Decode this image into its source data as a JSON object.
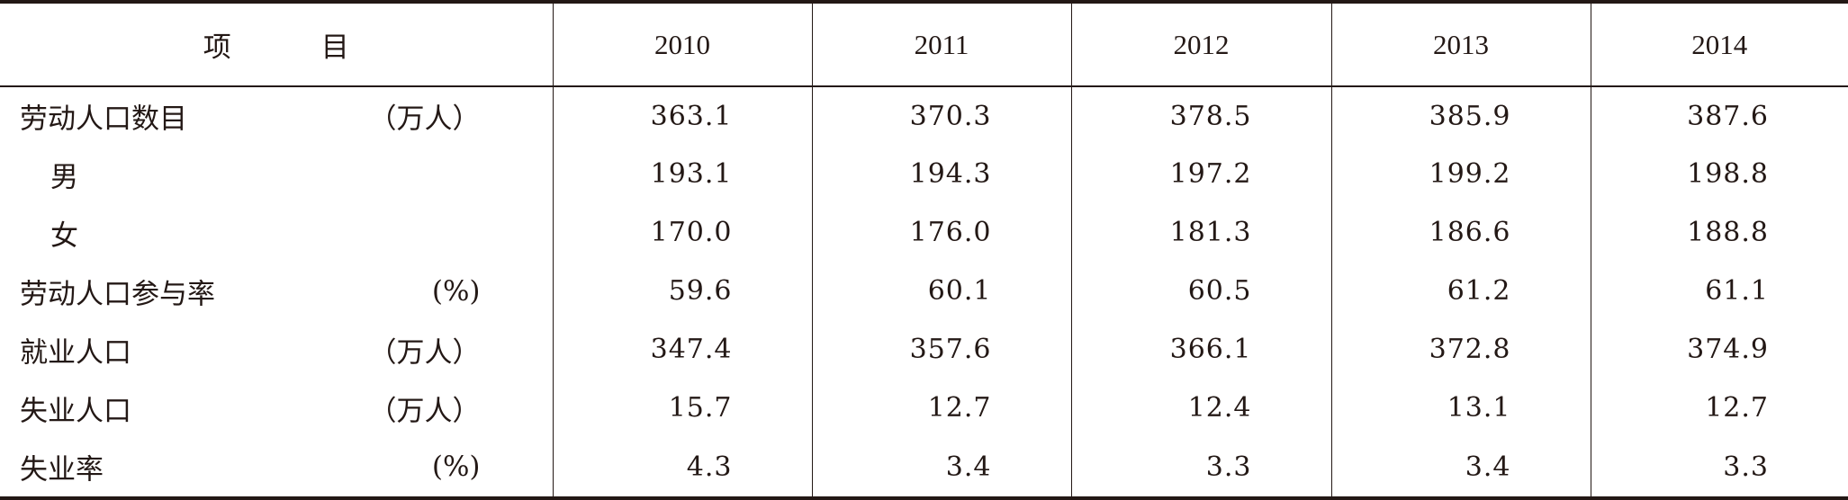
{
  "table": {
    "header": {
      "item_a": "项",
      "item_b": "目",
      "years": [
        "2010",
        "2011",
        "2012",
        "2013",
        "2014"
      ]
    },
    "rows": [
      {
        "label": "劳动人口数目",
        "unit": "（万人）",
        "indent": false,
        "values": [
          "363.1",
          "370.3",
          "378.5",
          "385.9",
          "387.6"
        ]
      },
      {
        "label": "男",
        "unit": "",
        "indent": true,
        "values": [
          "193.1",
          "194.3",
          "197.2",
          "199.2",
          "198.8"
        ]
      },
      {
        "label": "女",
        "unit": "",
        "indent": true,
        "values": [
          "170.0",
          "176.0",
          "181.3",
          "186.6",
          "188.8"
        ]
      },
      {
        "label": "劳动人口参与率",
        "unit": "(%)",
        "indent": false,
        "values": [
          "59.6",
          "60.1",
          "60.5",
          "61.2",
          "61.1"
        ]
      },
      {
        "label": "就业人口",
        "unit": "（万人）",
        "indent": false,
        "values": [
          "347.4",
          "357.6",
          "366.1",
          "372.8",
          "374.9"
        ]
      },
      {
        "label": "失业人口",
        "unit": "（万人）",
        "indent": false,
        "values": [
          "15.7",
          "12.7",
          "12.4",
          "13.1",
          "12.7"
        ]
      },
      {
        "label": "失业率",
        "unit": "(%)",
        "indent": false,
        "values": [
          "4.3",
          "3.4",
          "3.3",
          "3.4",
          "3.3"
        ]
      }
    ]
  }
}
